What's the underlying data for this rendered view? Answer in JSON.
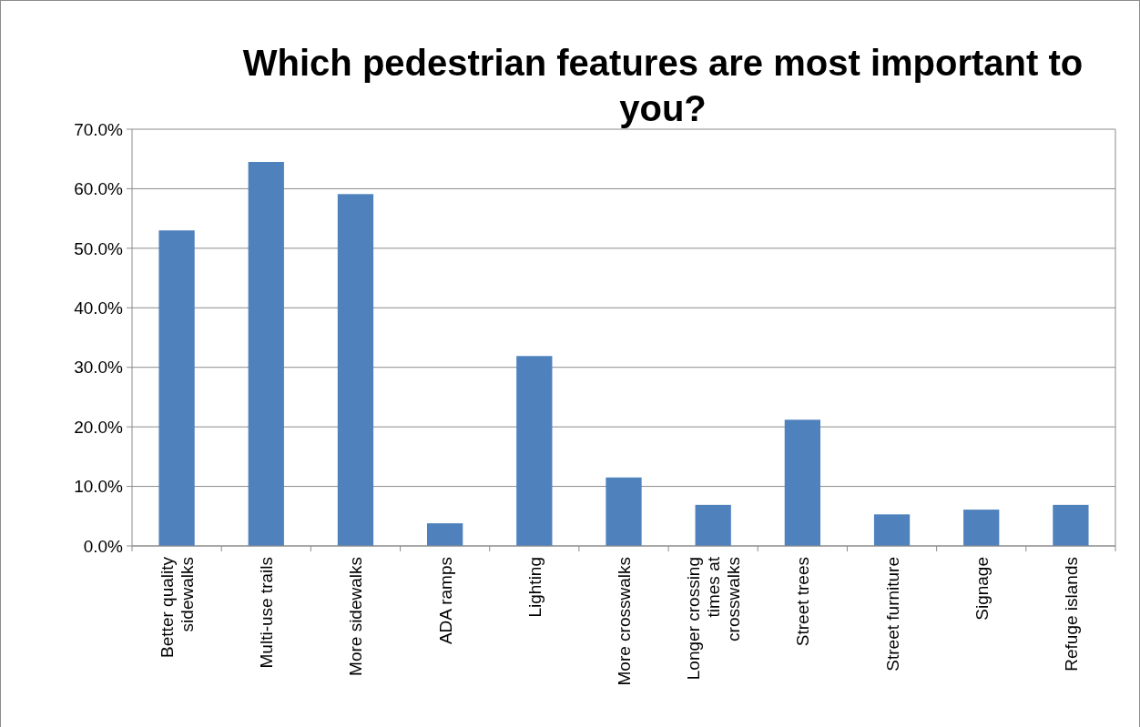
{
  "chart_data": {
    "type": "bar",
    "title": "Which pedestrian features are most important to you?",
    "categories": [
      "Better quality sidewalks",
      "Multi-use trails",
      "More sidewalks",
      "ADA ramps",
      "Lighting",
      "More crosswalks",
      "Longer crossing times at crosswalks",
      "Street trees",
      "Street furniture",
      "Signage",
      "Refuge islands"
    ],
    "values": [
      53.0,
      64.5,
      59.1,
      3.8,
      31.9,
      11.5,
      6.9,
      21.2,
      5.3,
      6.1,
      6.9
    ],
    "color": "#4f81bd",
    "ylim": [
      0,
      70
    ],
    "yticks": [
      {
        "value": 0,
        "label": "0.0%"
      },
      {
        "value": 10,
        "label": "10.0%"
      },
      {
        "value": 20,
        "label": "20.0%"
      },
      {
        "value": 30,
        "label": "30.0%"
      },
      {
        "value": 40,
        "label": "40.0%"
      },
      {
        "value": 50,
        "label": "50.0%"
      },
      {
        "value": 60,
        "label": "60.0%"
      },
      {
        "value": 70,
        "label": "70.0%"
      }
    ],
    "grid": "y"
  }
}
